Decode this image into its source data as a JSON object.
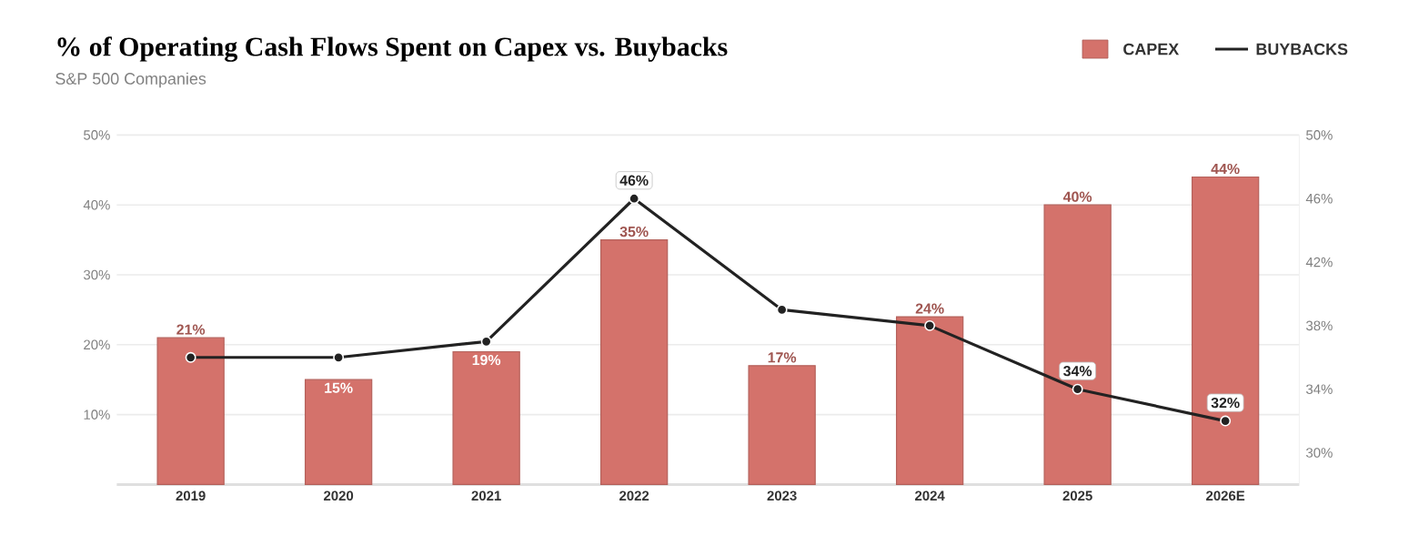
{
  "chart_data": {
    "type": "bar",
    "title": "% of Operating Cash Flows Spent on Capex vs. Buybacks",
    "subtitle": "S&P 500 Companies",
    "categories": [
      "2019",
      "2020",
      "2021",
      "2022",
      "2023",
      "2024",
      "2025",
      "2026E"
    ],
    "series": [
      {
        "name": "CAPEX",
        "color": "#d4726b",
        "values": [
          21,
          15,
          19,
          35,
          17,
          24,
          40,
          44
        ],
        "value_labels": [
          "21%",
          "15%",
          "19%",
          "35%",
          "17%",
          "24%",
          "40%",
          "44%"
        ]
      },
      {
        "name": "BUYBACKS",
        "type": "line",
        "axis": "y2",
        "color": "#222222",
        "values": [
          36,
          36,
          37,
          46,
          39,
          38,
          34,
          32
        ],
        "value_labels": [
          null,
          null,
          null,
          "46%",
          null,
          null,
          "34%",
          "32%"
        ],
        "marker": "circle",
        "line_style": "solid"
      }
    ],
    "ylim": [
      0,
      50
    ],
    "yticks": [
      {
        "value": 10,
        "label": "10%"
      },
      {
        "value": 20,
        "label": "20%"
      },
      {
        "value": 30,
        "label": "30%"
      },
      {
        "value": 40,
        "label": "40%"
      },
      {
        "value": 50,
        "label": "50%"
      }
    ],
    "y2lim": [
      28,
      50
    ],
    "y2ticks": [
      {
        "value": 30,
        "label": "30%"
      },
      {
        "value": 34,
        "label": "34%"
      },
      {
        "value": 38,
        "label": "38%"
      },
      {
        "value": 42,
        "label": "42%"
      },
      {
        "value": 46,
        "label": "46%"
      },
      {
        "value": 50,
        "label": "50%"
      }
    ],
    "grid": "y",
    "legend": "top right"
  }
}
